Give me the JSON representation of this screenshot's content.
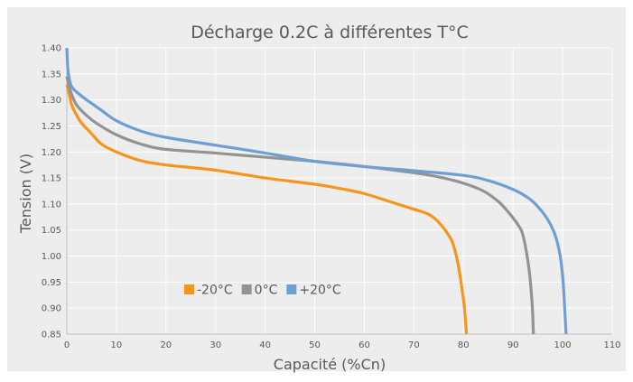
{
  "chart_data": {
    "type": "line",
    "title": "Décharge 0.2C à différentes T°C",
    "xlabel": "Capacité (%Cn)",
    "ylabel": "Tension (V)",
    "xlim": [
      0,
      110
    ],
    "ylim": [
      0.85,
      1.4
    ],
    "x_ticks": [
      "0",
      "10",
      "20",
      "30",
      "40",
      "50",
      "60",
      "70",
      "80",
      "90",
      "100",
      "110"
    ],
    "y_ticks": [
      "0.85",
      "0.90",
      "0.95",
      "1.00",
      "1.05",
      "1.10",
      "1.15",
      "1.20",
      "1.25",
      "1.30",
      "1.35",
      "1.40"
    ],
    "grid": true,
    "legend_position": "lower-left",
    "background": "#ededed",
    "series": [
      {
        "name": "-20°C",
        "color": "#f7941d",
        "points": [
          [
            0,
            1.33
          ],
          [
            0.5,
            1.31
          ],
          [
            1,
            1.29
          ],
          [
            2,
            1.27
          ],
          [
            3,
            1.255
          ],
          [
            5,
            1.235
          ],
          [
            7,
            1.215
          ],
          [
            10,
            1.2
          ],
          [
            15,
            1.183
          ],
          [
            20,
            1.175
          ],
          [
            30,
            1.165
          ],
          [
            40,
            1.15
          ],
          [
            50,
            1.138
          ],
          [
            55,
            1.13
          ],
          [
            60,
            1.12
          ],
          [
            65,
            1.105
          ],
          [
            70,
            1.09
          ],
          [
            73,
            1.08
          ],
          [
            75,
            1.065
          ],
          [
            77,
            1.04
          ],
          [
            78,
            1.02
          ],
          [
            79,
            0.98
          ],
          [
            79.8,
            0.93
          ],
          [
            80.2,
            0.9
          ],
          [
            80.6,
            0.85
          ]
        ]
      },
      {
        "name": "0°C",
        "color": "#939393",
        "points": [
          [
            0,
            1.345
          ],
          [
            0.5,
            1.325
          ],
          [
            1,
            1.31
          ],
          [
            2,
            1.29
          ],
          [
            4,
            1.27
          ],
          [
            6,
            1.255
          ],
          [
            10,
            1.233
          ],
          [
            15,
            1.215
          ],
          [
            20,
            1.205
          ],
          [
            30,
            1.198
          ],
          [
            40,
            1.19
          ],
          [
            50,
            1.182
          ],
          [
            60,
            1.172
          ],
          [
            70,
            1.16
          ],
          [
            75,
            1.152
          ],
          [
            80,
            1.14
          ],
          [
            84,
            1.125
          ],
          [
            87,
            1.105
          ],
          [
            89,
            1.085
          ],
          [
            91,
            1.06
          ],
          [
            92,
            1.04
          ],
          [
            93,
            0.99
          ],
          [
            93.5,
            0.95
          ],
          [
            93.9,
            0.9
          ],
          [
            94.1,
            0.85
          ]
        ]
      },
      {
        "name": "+20°C",
        "color": "#6e9fd4",
        "points": [
          [
            0,
            1.4
          ],
          [
            0.2,
            1.36
          ],
          [
            0.5,
            1.34
          ],
          [
            1,
            1.325
          ],
          [
            2,
            1.315
          ],
          [
            4,
            1.3
          ],
          [
            7,
            1.28
          ],
          [
            10,
            1.26
          ],
          [
            15,
            1.24
          ],
          [
            20,
            1.228
          ],
          [
            30,
            1.213
          ],
          [
            40,
            1.198
          ],
          [
            50,
            1.182
          ],
          [
            60,
            1.172
          ],
          [
            70,
            1.164
          ],
          [
            80,
            1.155
          ],
          [
            85,
            1.145
          ],
          [
            90,
            1.128
          ],
          [
            93,
            1.112
          ],
          [
            95,
            1.095
          ],
          [
            97,
            1.07
          ],
          [
            98.5,
            1.04
          ],
          [
            99.5,
            1.0
          ],
          [
            100.1,
            0.95
          ],
          [
            100.4,
            0.9
          ],
          [
            100.7,
            0.85
          ]
        ]
      }
    ]
  }
}
